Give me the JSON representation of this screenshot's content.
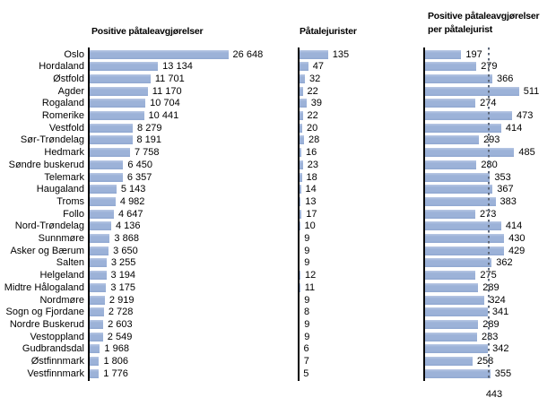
{
  "chart_data": {
    "type": "bar",
    "orientation": "horizontal",
    "gridlines": "off",
    "legend": "none",
    "categories": [
      "Oslo",
      "Hordaland",
      "Østfold",
      "Agder",
      "Rogaland",
      "Romerike",
      "Vestfold",
      "Sør-Trøndelag",
      "Hedmark",
      "Søndre buskerud",
      "Telemark",
      "Haugaland",
      "Troms",
      "Follo",
      "Nord-Trøndelag",
      "Sunnmøre",
      "Asker og Bærum",
      "Salten",
      "Helgeland",
      "Midtre Hålogaland",
      "Nordmøre",
      "Sogn og Fjordane",
      "Nordre Buskerud",
      "Vestoppland",
      "Gudbrandsdal",
      "Østfinnmark",
      "Vestfinnmark"
    ],
    "panels": [
      {
        "title": "Positive påtaleavgjørelser",
        "value_format": "thousands-space",
        "values": [
          26648,
          13134,
          11701,
          11170,
          10704,
          10441,
          8279,
          8191,
          7758,
          6450,
          6357,
          5143,
          4982,
          4647,
          4136,
          3868,
          3650,
          3255,
          3194,
          3175,
          2919,
          2728,
          2603,
          2549,
          1968,
          1806,
          1776
        ]
      },
      {
        "title": "Påtalejurister",
        "value_format": "plain",
        "values": [
          135,
          47,
          32,
          22,
          39,
          22,
          20,
          28,
          16,
          23,
          18,
          14,
          13,
          17,
          10,
          9,
          9,
          9,
          12,
          11,
          9,
          8,
          9,
          9,
          6,
          7,
          5
        ]
      },
      {
        "title": "Positive påtaleavgjørelser\nper påtalejurist",
        "value_format": "plain",
        "values": [
          197,
          279,
          366,
          511,
          274,
          473,
          414,
          293,
          485,
          280,
          353,
          367,
          383,
          273,
          414,
          430,
          429,
          362,
          275,
          289,
          324,
          341,
          289,
          283,
          342,
          258,
          355
        ],
        "reference_line_label": "443"
      }
    ]
  },
  "styles": {
    "bar_color": "#9cb2d8",
    "bar_highlight": "#b9c7e4",
    "bar_shadow": "#90a7d0",
    "axis_color": "#000000",
    "reference_line_color": "#5c6778",
    "text_color": "#000000",
    "background": "#ffffff"
  }
}
